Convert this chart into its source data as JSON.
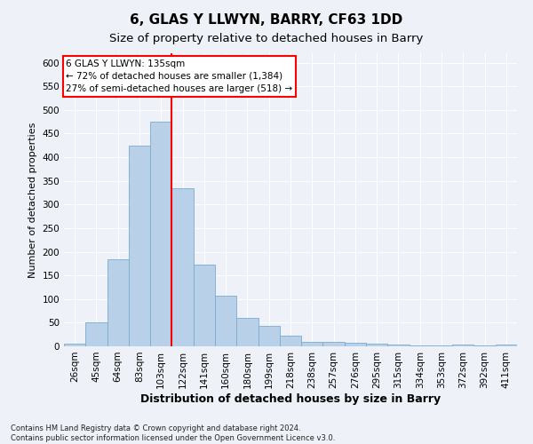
{
  "title": "6, GLAS Y LLWYN, BARRY, CF63 1DD",
  "subtitle": "Size of property relative to detached houses in Barry",
  "xlabel": "Distribution of detached houses by size in Barry",
  "ylabel": "Number of detached properties",
  "categories": [
    "26sqm",
    "45sqm",
    "64sqm",
    "83sqm",
    "103sqm",
    "122sqm",
    "141sqm",
    "160sqm",
    "180sqm",
    "199sqm",
    "218sqm",
    "238sqm",
    "257sqm",
    "276sqm",
    "295sqm",
    "315sqm",
    "334sqm",
    "353sqm",
    "372sqm",
    "392sqm",
    "411sqm"
  ],
  "values": [
    5,
    50,
    185,
    425,
    475,
    335,
    172,
    108,
    60,
    43,
    22,
    10,
    10,
    7,
    5,
    3,
    2,
    1,
    3,
    1,
    3
  ],
  "bar_color": "#b8d0e8",
  "bar_edge_color": "#7aabcf",
  "vline_index": 5,
  "vline_color": "red",
  "annotation_title": "6 GLAS Y LLWYN: 135sqm",
  "annotation_line1": "← 72% of detached houses are smaller (1,384)",
  "annotation_line2": "27% of semi-detached houses are larger (518) →",
  "ylim": [
    0,
    620
  ],
  "yticks": [
    0,
    50,
    100,
    150,
    200,
    250,
    300,
    350,
    400,
    450,
    500,
    550,
    600
  ],
  "background_color": "#eef2f8",
  "footnote1": "Contains HM Land Registry data © Crown copyright and database right 2024.",
  "footnote2": "Contains public sector information licensed under the Open Government Licence v3.0.",
  "title_fontsize": 11,
  "subtitle_fontsize": 9.5,
  "xlabel_fontsize": 9,
  "ylabel_fontsize": 8,
  "tick_fontsize": 7.5,
  "annot_fontsize": 7.5
}
